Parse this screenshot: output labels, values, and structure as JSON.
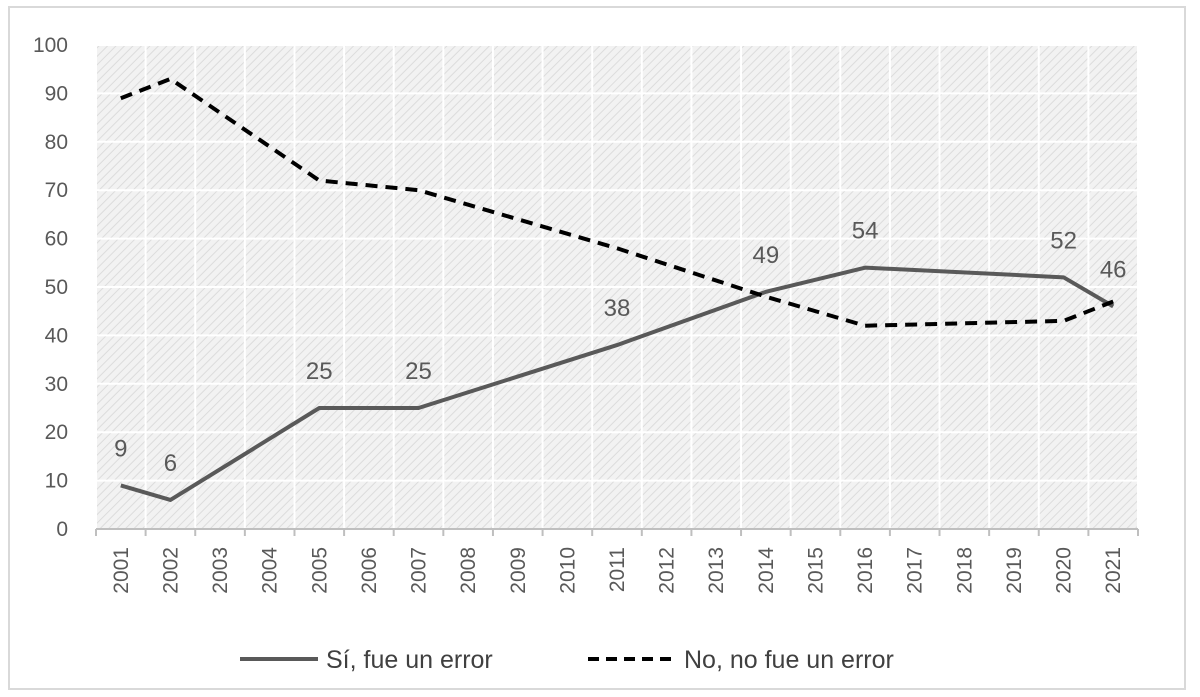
{
  "chart_data": {
    "type": "line",
    "title": "",
    "xlabel": "",
    "ylabel": "",
    "ylim": [
      0,
      100
    ],
    "yticks": [
      0,
      10,
      20,
      30,
      40,
      50,
      60,
      70,
      80,
      90,
      100
    ],
    "categories": [
      "2001",
      "2002",
      "2003",
      "2004",
      "2005",
      "2006",
      "2007",
      "2008",
      "2009",
      "2010",
      "2011",
      "2012",
      "2013",
      "2014",
      "2015",
      "2016",
      "2017",
      "2018",
      "2019",
      "2020",
      "2021"
    ],
    "grid": true,
    "legend_position": "bottom",
    "series": [
      {
        "name": "Sí, fue un error",
        "style": "solid",
        "color": "#595959",
        "points": [
          {
            "x": "2001",
            "y": 9
          },
          {
            "x": "2002",
            "y": 6
          },
          {
            "x": "2005",
            "y": 25
          },
          {
            "x": "2007",
            "y": 25
          },
          {
            "x": "2011",
            "y": 38
          },
          {
            "x": "2014",
            "y": 49
          },
          {
            "x": "2016",
            "y": 54
          },
          {
            "x": "2020",
            "y": 52
          },
          {
            "x": "2021",
            "y": 46
          }
        ],
        "data_labels": [
          "9",
          "6",
          "25",
          "25",
          "38",
          "49",
          "54",
          "52",
          "46"
        ]
      },
      {
        "name": "No, no fue un error",
        "style": "dashed",
        "color": "#000000",
        "points": [
          {
            "x": "2001",
            "y": 89
          },
          {
            "x": "2002",
            "y": 93
          },
          {
            "x": "2005",
            "y": 72
          },
          {
            "x": "2007",
            "y": 70
          },
          {
            "x": "2011",
            "y": 58
          },
          {
            "x": "2014",
            "y": 48
          },
          {
            "x": "2016",
            "y": 42
          },
          {
            "x": "2020",
            "y": 43
          },
          {
            "x": "2021",
            "y": 47
          }
        ]
      }
    ]
  }
}
